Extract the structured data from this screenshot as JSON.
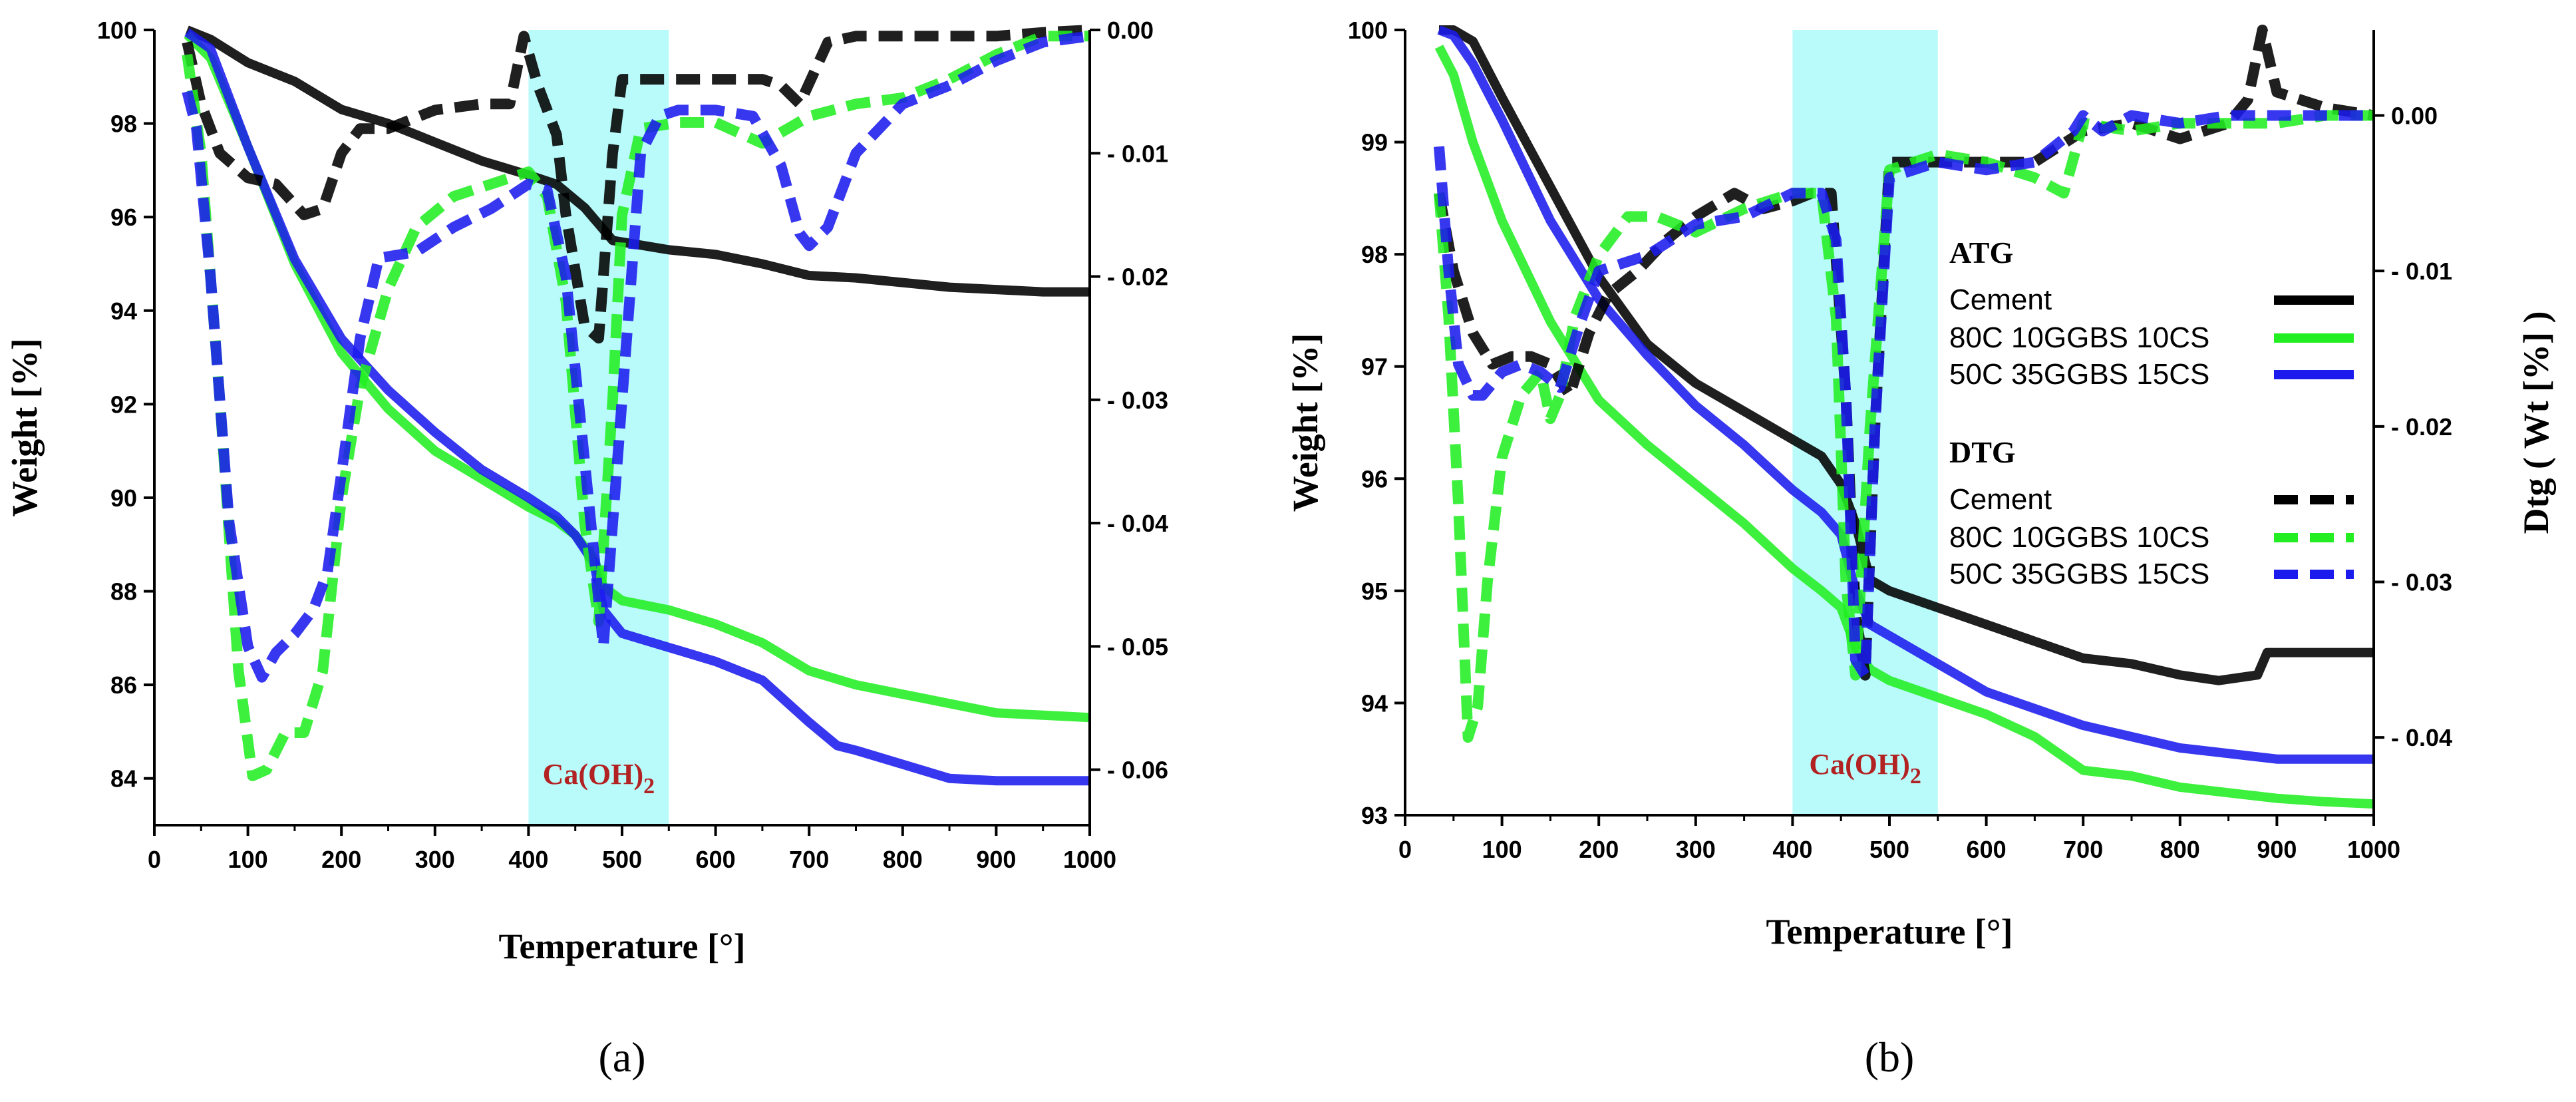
{
  "colors": {
    "band": "#7ff5f5",
    "annotation": "#b22222",
    "cement": "#000000",
    "c80": "#22ee22",
    "c50": "#1b1bee"
  },
  "chart_data": [
    {
      "type": "line",
      "panel_label": "(a)",
      "xlabel": "Temperature [°]",
      "ylabel": "Weight [%]",
      "y2label": "",
      "xlim": [
        0,
        1000
      ],
      "ylim": [
        83,
        100
      ],
      "y2lim": [
        -0.0645,
        0.0
      ],
      "xticks": [
        0,
        100,
        200,
        300,
        400,
        500,
        600,
        700,
        800,
        900,
        1000
      ],
      "yticks": [
        84,
        86,
        88,
        90,
        92,
        94,
        96,
        98,
        100
      ],
      "y2ticks": [
        0.0,
        -0.01,
        -0.02,
        -0.03,
        -0.04,
        -0.05,
        -0.06
      ],
      "y2ticklabels": [
        "0.00",
        "- 0.01",
        "- 0.02",
        "- 0.03",
        "- 0.04",
        "- 0.05",
        "- 0.06"
      ],
      "band": {
        "from": 400,
        "to": 550,
        "label": "Ca(OH)₂"
      },
      "grid": false,
      "legend": null,
      "series": [
        {
          "key": "cement",
          "axis": "left",
          "style": "solid",
          "x": [
            35,
            60,
            100,
            150,
            200,
            250,
            300,
            350,
            400,
            430,
            460,
            490,
            550,
            600,
            650,
            700,
            750,
            800,
            850,
            900,
            950,
            1000
          ],
          "y": [
            100,
            99.8,
            99.3,
            98.9,
            98.3,
            98.0,
            97.6,
            97.2,
            96.9,
            96.7,
            96.2,
            95.5,
            95.3,
            95.2,
            95.0,
            94.75,
            94.7,
            94.6,
            94.5,
            94.45,
            94.4,
            94.4
          ]
        },
        {
          "key": "c80",
          "axis": "left",
          "style": "solid",
          "x": [
            35,
            60,
            100,
            150,
            200,
            250,
            300,
            350,
            400,
            430,
            450,
            470,
            480,
            500,
            550,
            600,
            650,
            700,
            750,
            800,
            850,
            900,
            950,
            1000
          ],
          "y": [
            99.9,
            99.4,
            97.5,
            95.0,
            93.1,
            91.9,
            91.0,
            90.4,
            89.8,
            89.5,
            89.2,
            88.7,
            88.1,
            87.8,
            87.6,
            87.3,
            86.9,
            86.3,
            86.0,
            85.8,
            85.6,
            85.4,
            85.35,
            85.3
          ]
        },
        {
          "key": "c50",
          "axis": "left",
          "style": "solid",
          "x": [
            35,
            60,
            100,
            150,
            200,
            250,
            300,
            350,
            400,
            430,
            450,
            470,
            480,
            500,
            550,
            600,
            650,
            700,
            730,
            750,
            800,
            850,
            900,
            950,
            1000
          ],
          "y": [
            99.95,
            99.6,
            97.5,
            95.1,
            93.4,
            92.3,
            91.4,
            90.6,
            90.0,
            89.6,
            89.2,
            88.6,
            87.6,
            87.1,
            86.8,
            86.5,
            86.1,
            85.2,
            84.7,
            84.6,
            84.3,
            84.0,
            83.95,
            83.95,
            83.95
          ]
        },
        {
          "key": "cement",
          "axis": "right",
          "style": "dashed",
          "x": [
            35,
            50,
            70,
            100,
            130,
            160,
            180,
            200,
            220,
            250,
            300,
            350,
            380,
            395,
            410,
            430,
            440,
            460,
            475,
            490,
            500,
            530,
            560,
            600,
            650,
            670,
            690,
            720,
            750,
            800,
            850,
            900,
            950,
            1000
          ],
          "y": [
            -0.001,
            -0.006,
            -0.01,
            -0.012,
            -0.0125,
            -0.015,
            -0.0145,
            -0.01,
            -0.008,
            -0.008,
            -0.0065,
            -0.006,
            -0.006,
            -0.0005,
            -0.0045,
            -0.0085,
            -0.015,
            -0.024,
            -0.025,
            -0.01,
            -0.004,
            -0.004,
            -0.004,
            -0.004,
            -0.004,
            -0.0045,
            -0.006,
            -0.001,
            -0.0005,
            -0.0005,
            -0.0005,
            -0.0005,
            -0.0002,
            0.0
          ]
        },
        {
          "key": "c80",
          "axis": "right",
          "style": "dashed",
          "x": [
            35,
            50,
            70,
            90,
            105,
            120,
            140,
            160,
            180,
            200,
            220,
            250,
            280,
            320,
            360,
            400,
            420,
            440,
            460,
            475,
            490,
            500,
            520,
            560,
            600,
            650,
            700,
            750,
            800,
            850,
            900,
            950,
            1000
          ],
          "y": [
            -0.002,
            -0.01,
            -0.03,
            -0.052,
            -0.0605,
            -0.06,
            -0.057,
            -0.057,
            -0.052,
            -0.038,
            -0.029,
            -0.021,
            -0.016,
            -0.0135,
            -0.0125,
            -0.0115,
            -0.0135,
            -0.022,
            -0.04,
            -0.048,
            -0.03,
            -0.015,
            -0.008,
            -0.0075,
            -0.0075,
            -0.0092,
            -0.007,
            -0.006,
            -0.0055,
            -0.004,
            -0.002,
            -0.0005,
            -0.0005
          ]
        },
        {
          "key": "c50",
          "axis": "right",
          "style": "dashed",
          "x": [
            35,
            45,
            60,
            80,
            100,
            115,
            130,
            150,
            170,
            185,
            200,
            220,
            240,
            280,
            320,
            360,
            400,
            420,
            440,
            460,
            480,
            500,
            520,
            540,
            560,
            600,
            640,
            670,
            690,
            700,
            720,
            750,
            800,
            850,
            900,
            950,
            1000
          ],
          "y": [
            -0.005,
            -0.008,
            -0.02,
            -0.04,
            -0.05,
            -0.0525,
            -0.0505,
            -0.049,
            -0.047,
            -0.044,
            -0.036,
            -0.025,
            -0.0185,
            -0.018,
            -0.016,
            -0.0145,
            -0.0125,
            -0.013,
            -0.02,
            -0.035,
            -0.05,
            -0.03,
            -0.01,
            -0.007,
            -0.0065,
            -0.0065,
            -0.007,
            -0.011,
            -0.0165,
            -0.0175,
            -0.016,
            -0.01,
            -0.006,
            -0.0045,
            -0.0025,
            -0.001,
            -0.0005
          ]
        }
      ]
    },
    {
      "type": "line",
      "panel_label": "(b)",
      "xlabel": "Temperature [°]",
      "ylabel": "Weight [%]",
      "y2label": "Dtg ( Wt [%] )",
      "xlim": [
        0,
        1000
      ],
      "ylim": [
        93,
        100
      ],
      "y2lim": [
        -0.045,
        0.0055
      ],
      "xticks": [
        0,
        100,
        200,
        300,
        400,
        500,
        600,
        700,
        800,
        900,
        1000
      ],
      "yticks": [
        93,
        94,
        95,
        96,
        97,
        98,
        99,
        100
      ],
      "y2ticks": [
        0.0,
        -0.01,
        -0.02,
        -0.03,
        -0.04
      ],
      "y2ticklabels": [
        "0.00",
        "- 0.01",
        "- 0.02",
        "- 0.03",
        "- 0.04"
      ],
      "band": {
        "from": 400,
        "to": 550,
        "label": "Ca(OH)₂"
      },
      "grid": false,
      "legend": {
        "position": "center-right",
        "groups": [
          {
            "title": "ATG",
            "entries": [
              {
                "key": "cement",
                "label": "Cement",
                "style": "solid"
              },
              {
                "key": "c80",
                "label": "80C 10GGBS 10CS",
                "style": "solid"
              },
              {
                "key": "c50",
                "label": "50C 35GGBS 15CS",
                "style": "solid"
              }
            ]
          },
          {
            "title": "DTG",
            "entries": [
              {
                "key": "cement",
                "label": "Cement",
                "style": "dashed"
              },
              {
                "key": "c80",
                "label": "80C 10GGBS 10CS",
                "style": "dashed"
              },
              {
                "key": "c50",
                "label": "50C 35GGBS 15CS",
                "style": "dashed"
              }
            ]
          }
        ]
      },
      "series": [
        {
          "key": "cement",
          "axis": "left",
          "style": "solid",
          "x": [
            35,
            50,
            70,
            100,
            150,
            200,
            250,
            300,
            350,
            400,
            430,
            450,
            465,
            480,
            500,
            550,
            600,
            650,
            700,
            750,
            800,
            840,
            880,
            890,
            900,
            950,
            1000
          ],
          "y": [
            100,
            100,
            99.9,
            99.4,
            98.6,
            97.8,
            97.2,
            96.85,
            96.6,
            96.35,
            96.2,
            95.95,
            95.6,
            95.1,
            95.0,
            94.85,
            94.7,
            94.55,
            94.4,
            94.35,
            94.25,
            94.2,
            94.25,
            94.45,
            94.45,
            94.45,
            94.45
          ]
        },
        {
          "key": "c80",
          "axis": "left",
          "style": "solid",
          "x": [
            35,
            50,
            70,
            100,
            150,
            200,
            250,
            300,
            350,
            400,
            430,
            450,
            465,
            480,
            500,
            550,
            600,
            650,
            700,
            750,
            800,
            850,
            900,
            950,
            1000
          ],
          "y": [
            99.85,
            99.6,
            99.0,
            98.3,
            97.4,
            96.7,
            96.3,
            95.95,
            95.6,
            95.2,
            95.0,
            94.85,
            94.5,
            94.3,
            94.2,
            94.05,
            93.9,
            93.7,
            93.4,
            93.35,
            93.25,
            93.2,
            93.15,
            93.12,
            93.1
          ]
        },
        {
          "key": "c50",
          "axis": "left",
          "style": "solid",
          "x": [
            35,
            50,
            70,
            100,
            150,
            200,
            250,
            300,
            350,
            400,
            430,
            450,
            465,
            480,
            500,
            550,
            600,
            650,
            700,
            750,
            800,
            850,
            900,
            950,
            1000
          ],
          "y": [
            100,
            99.95,
            99.7,
            99.2,
            98.3,
            97.6,
            97.1,
            96.65,
            96.3,
            95.9,
            95.7,
            95.5,
            95.0,
            94.7,
            94.6,
            94.35,
            94.1,
            93.95,
            93.8,
            93.7,
            93.6,
            93.55,
            93.5,
            93.5,
            93.5
          ]
        },
        {
          "key": "cement",
          "axis": "right",
          "style": "dashed",
          "x": [
            35,
            50,
            70,
            90,
            110,
            130,
            150,
            170,
            190,
            210,
            240,
            270,
            300,
            340,
            370,
            400,
            420,
            440,
            455,
            465,
            475,
            485,
            500,
            550,
            600,
            650,
            700,
            750,
            800,
            850,
            870,
            880,
            885,
            900,
            950,
            1000
          ],
          "y": [
            -0.005,
            -0.01,
            -0.014,
            -0.016,
            -0.0155,
            -0.0155,
            -0.016,
            -0.018,
            -0.014,
            -0.0115,
            -0.01,
            -0.008,
            -0.0065,
            -0.005,
            -0.006,
            -0.0055,
            -0.005,
            -0.005,
            -0.018,
            -0.032,
            -0.036,
            -0.02,
            -0.003,
            -0.003,
            -0.003,
            -0.003,
            -0.001,
            -0.0005,
            -0.0015,
            -0.0005,
            0.001,
            0.004,
            0.0055,
            0.0015,
            0.0005,
            0.0
          ]
        },
        {
          "key": "c80",
          "axis": "right",
          "style": "dashed",
          "x": [
            35,
            45,
            55,
            65,
            75,
            85,
            100,
            120,
            140,
            150,
            160,
            175,
            200,
            230,
            260,
            300,
            350,
            400,
            430,
            445,
            455,
            465,
            480,
            500,
            550,
            600,
            650,
            680,
            700,
            750,
            800,
            850,
            900,
            950,
            1000
          ],
          "y": [
            -0.005,
            -0.013,
            -0.025,
            -0.04,
            -0.038,
            -0.03,
            -0.022,
            -0.018,
            -0.0165,
            -0.0195,
            -0.018,
            -0.013,
            -0.009,
            -0.0065,
            -0.0065,
            -0.0075,
            -0.006,
            -0.005,
            -0.005,
            -0.013,
            -0.03,
            -0.036,
            -0.02,
            -0.0035,
            -0.0025,
            -0.003,
            -0.004,
            -0.005,
            -0.0005,
            -0.001,
            -0.0005,
            -0.0005,
            -0.0005,
            0.0,
            0.0
          ]
        },
        {
          "key": "c50",
          "axis": "right",
          "style": "dashed",
          "x": [
            35,
            45,
            55,
            70,
            80,
            100,
            120,
            140,
            160,
            180,
            200,
            250,
            300,
            350,
            400,
            430,
            445,
            455,
            465,
            475,
            485,
            500,
            550,
            600,
            650,
            690,
            700,
            720,
            750,
            800,
            850,
            900,
            950,
            1000
          ],
          "y": [
            -0.002,
            -0.01,
            -0.016,
            -0.018,
            -0.018,
            -0.0165,
            -0.016,
            -0.0165,
            -0.0175,
            -0.0135,
            -0.01,
            -0.009,
            -0.007,
            -0.0065,
            -0.005,
            -0.005,
            -0.008,
            -0.018,
            -0.035,
            -0.036,
            -0.02,
            -0.004,
            -0.003,
            -0.0035,
            -0.003,
            -0.001,
            0.0,
            -0.001,
            0.0,
            -0.0005,
            0.0,
            0.0,
            0.0,
            0.0
          ]
        }
      ]
    }
  ]
}
